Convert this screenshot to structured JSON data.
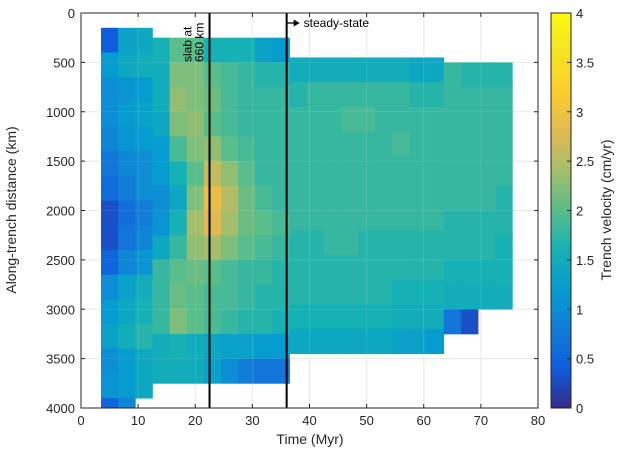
{
  "chart_data": {
    "type": "heatmap",
    "title": "",
    "xlabel": "Time (Myr)",
    "ylabel": "Along-trench distance (km)",
    "xlim": [
      0,
      80
    ],
    "ylim": [
      4000,
      0
    ],
    "y_reversed": true,
    "x_ticks": [
      0,
      10,
      20,
      30,
      40,
      50,
      60,
      70,
      80
    ],
    "y_ticks": [
      0,
      500,
      1000,
      1500,
      2000,
      2500,
      3000,
      3500,
      4000
    ],
    "grid": true,
    "colorbar": {
      "label": "Trench velocity (cm/yr)",
      "range": [
        0,
        4
      ],
      "ticks": [
        0,
        0.5,
        1,
        1.5,
        2,
        2.5,
        3,
        3.5,
        4
      ],
      "colormap": "parula"
    },
    "vertical_lines": [
      {
        "x": 22.5,
        "label": "slab at\n660 km"
      },
      {
        "x": 36,
        "label": "steady-state"
      }
    ],
    "column_width_myr": 3,
    "columns": [
      {
        "x0": 3.5,
        "y0": 150,
        "values": [
          0.4,
          1.2,
          1.0,
          1.0,
          0.9,
          0.7,
          0.6,
          0.3,
          0.3,
          0.5,
          1.0,
          1.2,
          1.3,
          1.0,
          1.1,
          0.5,
          0.5
        ]
      },
      {
        "x0": 6.5,
        "y0": 150,
        "values": [
          1.3,
          1.4,
          1.1,
          1.2,
          1.1,
          0.9,
          0.8,
          0.6,
          0.7,
          0.9,
          1.3,
          1.4,
          1.5,
          1.2,
          1.2,
          0.9,
          0.3
        ]
      },
      {
        "x0": 9.5,
        "y0": 150,
        "values": [
          1.4,
          1.5,
          1.2,
          1.3,
          1.2,
          1.0,
          1.0,
          0.8,
          0.9,
          1.1,
          1.5,
          1.6,
          1.7,
          1.4,
          1.4
        ]
      },
      {
        "x0": 12.5,
        "y0": 250,
        "values": [
          1.6,
          1.5,
          1.5,
          1.4,
          1.2,
          1.2,
          1.0,
          1.1,
          1.4,
          1.8,
          1.8,
          1.8,
          1.5,
          1.5
        ]
      },
      {
        "x0": 15.5,
        "y0": 250,
        "values": [
          2.0,
          2.2,
          2.3,
          2.2,
          1.9,
          1.6,
          1.4,
          1.6,
          1.8,
          2.0,
          2.1,
          2.2,
          1.6,
          1.5
        ]
      },
      {
        "x0": 18.5,
        "y0": 250,
        "values": [
          2.0,
          2.2,
          2.2,
          2.3,
          2.2,
          2.0,
          2.2,
          2.4,
          2.3,
          2.1,
          2.0,
          2.0,
          1.5,
          1.5
        ]
      },
      {
        "x0": 21.5,
        "y0": 250,
        "values": [
          1.6,
          2.0,
          2.1,
          2.0,
          2.3,
          2.6,
          2.9,
          2.8,
          2.4,
          2.0,
          1.9,
          1.9,
          1.4,
          1.3
        ]
      },
      {
        "x0": 24.5,
        "y0": 250,
        "values": [
          1.6,
          1.9,
          1.9,
          1.9,
          2.0,
          2.3,
          2.5,
          2.4,
          2.2,
          1.9,
          1.9,
          1.8,
          1.3,
          1.0
        ]
      },
      {
        "x0": 27.5,
        "y0": 250,
        "values": [
          1.6,
          1.8,
          1.8,
          1.8,
          1.9,
          2.0,
          2.1,
          2.1,
          2.0,
          1.8,
          1.8,
          1.7,
          1.3,
          0.8
        ]
      },
      {
        "x0": 30.5,
        "y0": 250,
        "values": [
          1.3,
          1.7,
          1.8,
          1.8,
          1.8,
          1.8,
          1.9,
          2.0,
          1.9,
          1.8,
          1.7,
          1.7,
          1.2,
          0.7
        ]
      },
      {
        "x0": 33.5,
        "y0": 250,
        "values": [
          1.2,
          1.7,
          1.8,
          1.8,
          1.8,
          1.8,
          1.8,
          1.9,
          1.8,
          1.7,
          1.7,
          1.6,
          1.2,
          0.7
        ]
      },
      {
        "x0": 36.5,
        "y0": 450,
        "values": [
          1.5,
          1.7,
          1.8,
          1.8,
          1.8,
          1.8,
          1.8,
          1.7,
          1.7,
          1.7,
          1.6,
          1.4
        ]
      },
      {
        "x0": 39.5,
        "y0": 450,
        "values": [
          1.5,
          1.8,
          1.8,
          1.8,
          1.8,
          1.8,
          1.8,
          1.7,
          1.7,
          1.7,
          1.6,
          1.4
        ]
      },
      {
        "x0": 42.5,
        "y0": 450,
        "values": [
          1.5,
          1.8,
          1.8,
          1.8,
          1.8,
          1.8,
          1.8,
          1.8,
          1.7,
          1.7,
          1.6,
          1.4
        ]
      },
      {
        "x0": 45.5,
        "y0": 450,
        "values": [
          1.5,
          1.8,
          1.9,
          1.8,
          1.8,
          1.8,
          1.8,
          1.8,
          1.7,
          1.7,
          1.6,
          1.4
        ]
      },
      {
        "x0": 48.5,
        "y0": 450,
        "values": [
          1.5,
          1.8,
          1.9,
          1.8,
          1.8,
          1.8,
          1.8,
          1.7,
          1.7,
          1.7,
          1.6,
          1.4
        ]
      },
      {
        "x0": 51.5,
        "y0": 450,
        "values": [
          1.5,
          1.8,
          1.8,
          1.8,
          1.8,
          1.8,
          1.8,
          1.7,
          1.7,
          1.7,
          1.6,
          1.4
        ]
      },
      {
        "x0": 54.5,
        "y0": 450,
        "values": [
          1.5,
          1.8,
          1.8,
          1.9,
          1.8,
          1.8,
          1.8,
          1.7,
          1.7,
          1.6,
          1.5,
          1.3
        ]
      },
      {
        "x0": 57.5,
        "y0": 450,
        "values": [
          1.4,
          1.7,
          1.8,
          1.8,
          1.8,
          1.8,
          1.8,
          1.7,
          1.7,
          1.6,
          1.5,
          1.3
        ]
      },
      {
        "x0": 60.5,
        "y0": 450,
        "values": [
          1.4,
          1.7,
          1.8,
          1.8,
          1.8,
          1.8,
          1.8,
          1.7,
          1.7,
          1.6,
          1.5,
          1.2
        ]
      },
      {
        "x0": 63.5,
        "y0": 500,
        "values": [
          1.8,
          1.8,
          1.8,
          1.8,
          1.8,
          1.8,
          1.7,
          1.7,
          1.6,
          1.5,
          0.7
        ]
      },
      {
        "x0": 66.5,
        "y0": 500,
        "values": [
          1.7,
          1.8,
          1.8,
          1.8,
          1.8,
          1.8,
          1.7,
          1.7,
          1.6,
          1.5,
          0.3
        ]
      },
      {
        "x0": 69.5,
        "y0": 500,
        "values": [
          1.7,
          1.8,
          1.8,
          1.8,
          1.8,
          1.8,
          1.7,
          1.7,
          1.6,
          1.5
        ]
      },
      {
        "x0": 72.5,
        "y0": 500,
        "values": [
          1.7,
          1.8,
          1.8,
          1.8,
          1.8,
          1.7,
          1.7,
          1.6,
          1.6,
          1.5
        ]
      }
    ]
  }
}
